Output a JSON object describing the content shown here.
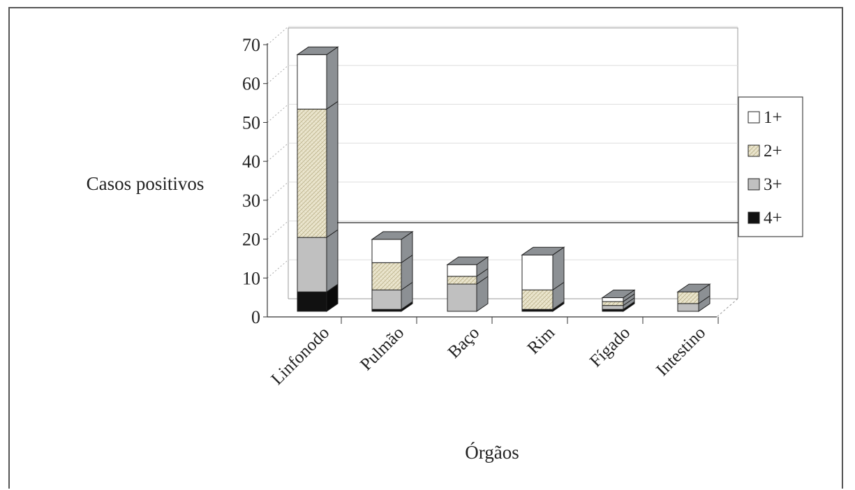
{
  "chart_data": {
    "type": "bar",
    "stacked": true,
    "style": "3d-column",
    "categories": [
      "Linfonodo",
      "Pulmão",
      "Baço",
      "Rim",
      "Fígado",
      "Intestino"
    ],
    "series": [
      {
        "name": "4+",
        "values": [
          5,
          0.5,
          0,
          0.5,
          0.5,
          0
        ],
        "color": "#111111"
      },
      {
        "name": "3+",
        "values": [
          14,
          5,
          7,
          0,
          1,
          2
        ],
        "color": "#c0c0c0"
      },
      {
        "name": "2+",
        "values": [
          33,
          7,
          2,
          5,
          1,
          3
        ],
        "color": "#e9e4cf"
      },
      {
        "name": "1+",
        "values": [
          14,
          6,
          3,
          9,
          1,
          0
        ],
        "color": "#ffffff"
      }
    ],
    "xlabel": "Órgãos",
    "ylabel": "Casos positivos",
    "ylim": [
      0,
      70
    ],
    "yticks": [
      "0",
      "10",
      "20",
      "30",
      "40",
      "50",
      "60",
      "70"
    ],
    "grid": true,
    "legend_position": "right",
    "legend": [
      "1+",
      "2+",
      "3+",
      "4+"
    ]
  }
}
